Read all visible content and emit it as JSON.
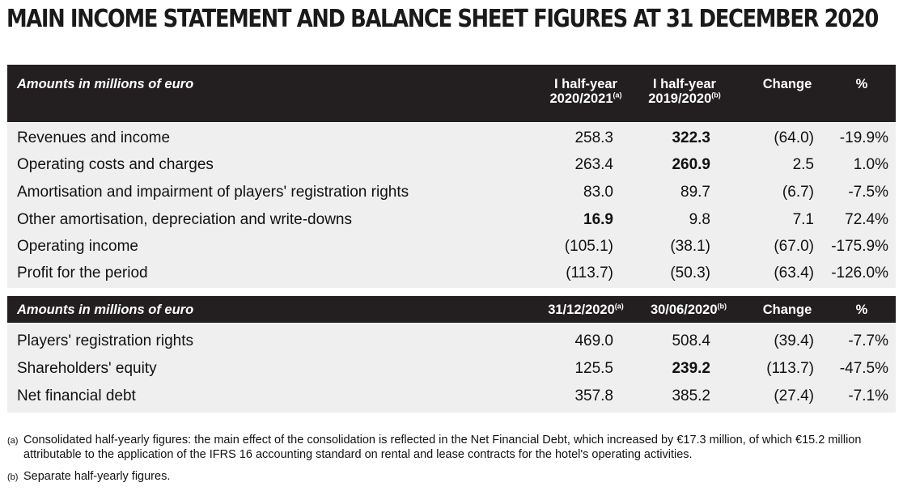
{
  "title": "MAIN INCOME STATEMENT AND BALANCE SHEET FIGURES AT 31 DECEMBER 2020",
  "income_table": {
    "header": {
      "label": "Amounts in millions of euro",
      "col1_line1": "I half-year",
      "col1_line2": "2020/2021",
      "col1_sup": "(a)",
      "col2_line1": "I half-year",
      "col2_line2": "2019/2020",
      "col2_sup": "(b)",
      "col3": "Change",
      "col4": "%"
    },
    "rows": [
      {
        "label": "Revenues and income",
        "v1": "258.3",
        "v2": "322.3",
        "change": "(64.0)",
        "pct": "-19.9%"
      },
      {
        "label": "Operating costs and charges",
        "v1": "263.4",
        "v2": "260.9",
        "change": "2.5",
        "pct": "1.0%"
      },
      {
        "label": "Amortisation and impairment of players' registration rights",
        "v1": "83.0",
        "v2": "89.7",
        "change": "(6.7)",
        "pct": "-7.5%"
      },
      {
        "label": "Other amortisation, depreciation and write-downs",
        "v1": "16.9",
        "v2": "9.8",
        "change": "7.1",
        "pct": "72.4%"
      },
      {
        "label": "Operating income",
        "v1": "(105.1)",
        "v2": "(38.1)",
        "change": "(67.0)",
        "pct": "-175.9%"
      },
      {
        "label": "Profit for the period",
        "v1": "(113.7)",
        "v2": "(50.3)",
        "change": "(63.4)",
        "pct": "-126.0%"
      }
    ]
  },
  "balance_table": {
    "header": {
      "label": "Amounts in millions of euro",
      "col1": "31/12/2020",
      "col1_sup": "(a)",
      "col2": "30/06/2020",
      "col2_sup": "(b)",
      "col3": "Change",
      "col4": "%"
    },
    "rows": [
      {
        "label": "Players' registration rights",
        "v1": "469.0",
        "v2": "508.4",
        "change": "(39.4)",
        "pct": "-7.7%"
      },
      {
        "label": "Shareholders' equity",
        "v1": "125.5",
        "v2": "239.2",
        "change": "(113.7)",
        "pct": "-47.5%"
      },
      {
        "label": "Net financial debt",
        "v1": "357.8",
        "v2": "385.2",
        "change": "(27.4)",
        "pct": "-7.1%"
      }
    ]
  },
  "notes": {
    "a_marker": "(a)",
    "a_text": "Consolidated half-yearly figures: the main effect of the consolidation is reflected in the Net Financial Debt, which increased by €17.3 million, of which €15.2 million attributable to the application of the IFRS 16 accounting standard on rental and lease contracts for the hotel's operating activities.",
    "b_marker": "(b)",
    "b_text": "Separate half-yearly figures."
  }
}
